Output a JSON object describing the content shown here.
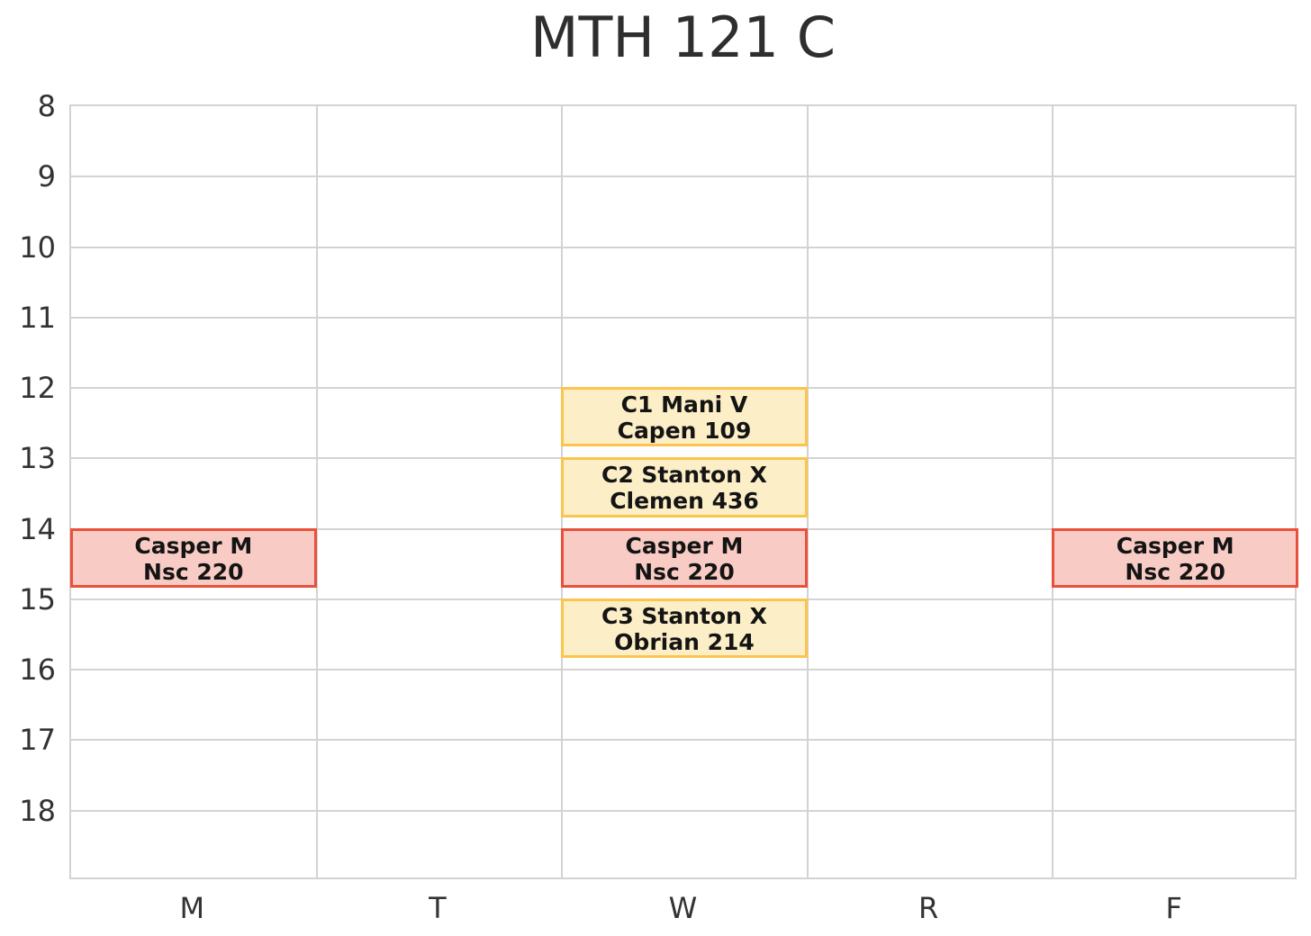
{
  "page": {
    "title": "MTH 121 C"
  },
  "chart_data": {
    "type": "schedule",
    "title": "MTH 121 C",
    "x_axis": {
      "label": "",
      "categories": [
        "M",
        "T",
        "W",
        "R",
        "F"
      ]
    },
    "y_axis": {
      "label": "",
      "unit": "hour_of_day",
      "ticks": [
        8,
        9,
        10,
        11,
        12,
        13,
        14,
        15,
        16,
        17,
        18
      ],
      "range": [
        8,
        19
      ],
      "direction": "down"
    },
    "grid": true,
    "legend": "none",
    "styles": {
      "lecture": {
        "fill": "#f8ccc4",
        "border": "#e8513b"
      },
      "recitation": {
        "fill": "#fceec6",
        "border": "#fbc54d"
      }
    },
    "gridline_color": "#d3d3d3",
    "axis_text_color": "#333333",
    "title_color": "#2e2e2e",
    "block_text_color": "#141414",
    "events": [
      {
        "day": "M",
        "start": 14.0,
        "end": 14.8333,
        "line1": "Casper M",
        "line2": "Nsc 220",
        "style": "lecture"
      },
      {
        "day": "W",
        "start": 12.0,
        "end": 12.8333,
        "line1": "C1 Mani V",
        "line2": "Capen 109",
        "style": "recitation"
      },
      {
        "day": "W",
        "start": 13.0,
        "end": 13.8333,
        "line1": "C2 Stanton X",
        "line2": "Clemen 436",
        "style": "recitation"
      },
      {
        "day": "W",
        "start": 14.0,
        "end": 14.8333,
        "line1": "Casper M",
        "line2": "Nsc 220",
        "style": "lecture"
      },
      {
        "day": "W",
        "start": 15.0,
        "end": 15.8333,
        "line1": "C3 Stanton X",
        "line2": "Obrian 214",
        "style": "recitation"
      },
      {
        "day": "F",
        "start": 14.0,
        "end": 14.8333,
        "line1": "Casper M",
        "line2": "Nsc 220",
        "style": "lecture"
      }
    ]
  }
}
